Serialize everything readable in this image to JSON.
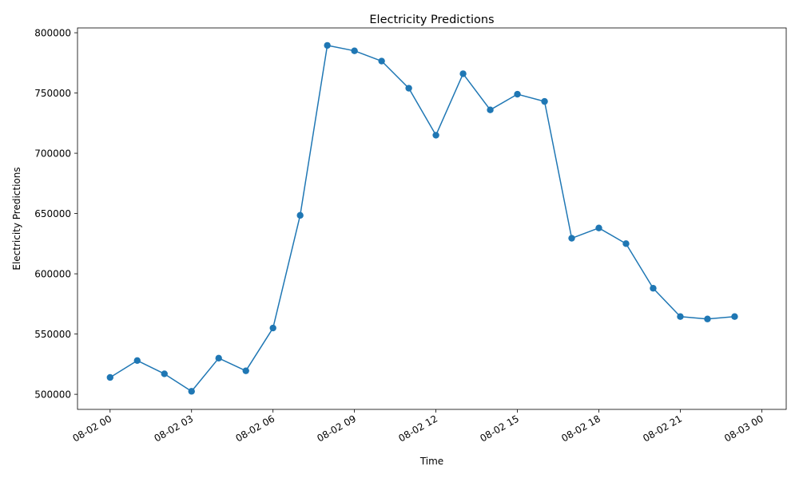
{
  "chart_data": {
    "type": "line",
    "title": "Electricity Predictions",
    "xlabel": "Time",
    "ylabel": "Electricity Predictions",
    "x": [
      "08-02 00",
      "08-02 01",
      "08-02 02",
      "08-02 03",
      "08-02 04",
      "08-02 05",
      "08-02 06",
      "08-02 07",
      "08-02 08",
      "08-02 09",
      "08-02 10",
      "08-02 11",
      "08-02 12",
      "08-02 13",
      "08-02 14",
      "08-02 15",
      "08-02 16",
      "08-02 17",
      "08-02 18",
      "08-02 19",
      "08-02 20",
      "08-02 21",
      "08-02 22",
      "08-02 23"
    ],
    "series": [
      {
        "values": [
          514000,
          528000,
          517000,
          502500,
          530000,
          519500,
          555000,
          648500,
          789500,
          785000,
          776500,
          754000,
          715000,
          766000,
          736000,
          749000,
          743000,
          629500,
          638000,
          625000,
          588000,
          564500,
          562500,
          564500
        ],
        "color": "#1f77b4",
        "marker": "circle"
      }
    ],
    "x_ticks": [
      "08-02 00",
      "08-02 03",
      "08-02 06",
      "08-02 09",
      "08-02 12",
      "08-02 15",
      "08-02 18",
      "08-02 21",
      "08-03 00"
    ],
    "x_range_hours": [
      -1.2,
      24.9
    ],
    "y_ticks": [
      "500000",
      "550000",
      "600000",
      "650000",
      "700000",
      "750000",
      "800000"
    ],
    "ylim": [
      487500,
      804000
    ],
    "grid": false,
    "legend": "none"
  }
}
